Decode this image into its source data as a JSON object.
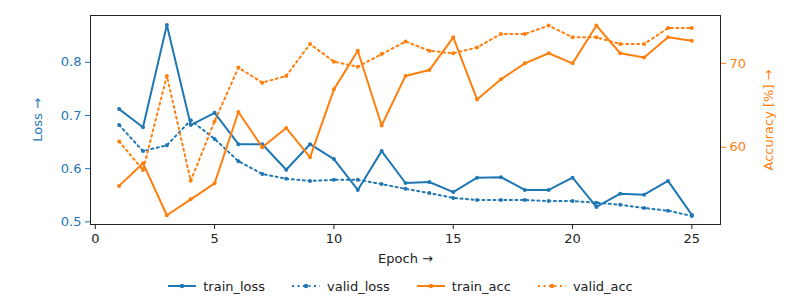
{
  "chart_data": {
    "type": "line",
    "x": [
      1,
      2,
      3,
      4,
      5,
      6,
      7,
      8,
      9,
      10,
      11,
      12,
      13,
      14,
      15,
      16,
      17,
      18,
      19,
      20,
      21,
      22,
      23,
      24,
      25
    ],
    "xlabel": "Epoch",
    "ylabel": "Loss",
    "y2label": "Accuracy [%]",
    "xlim": [
      -0.2,
      26.2
    ],
    "xticks": [
      0,
      5,
      10,
      15,
      20,
      25
    ],
    "ylim": [
      0.495,
      0.888
    ],
    "yticks": [
      0.5,
      0.6,
      0.7,
      0.8
    ],
    "y2lim": [
      50.8,
      75.7
    ],
    "y2ticks": [
      60,
      70
    ],
    "grid": false,
    "legend": "bottom",
    "series": [
      {
        "name": "train_loss",
        "color": "#1f77b4",
        "line_style": "solid",
        "marker": "o",
        "values": [
          0.712,
          0.678,
          0.87,
          0.682,
          0.705,
          0.646,
          0.646,
          0.598,
          0.646,
          0.618,
          0.56,
          0.633,
          0.573,
          0.575,
          0.556,
          0.583,
          0.584,
          0.56,
          0.56,
          0.583,
          0.528,
          0.553,
          0.551,
          0.577,
          0.513
        ]
      },
      {
        "name": "valid_loss",
        "color": "#1f77b4",
        "line_style": "dotted",
        "marker": "o",
        "values": [
          0.682,
          0.633,
          0.644,
          0.691,
          0.656,
          0.614,
          0.59,
          0.581,
          0.577,
          0.579,
          0.579,
          0.571,
          0.562,
          0.554,
          0.545,
          0.541,
          0.541,
          0.541,
          0.539,
          0.539,
          0.536,
          0.532,
          0.526,
          0.521,
          0.511
        ]
      },
      {
        "name": "train_acc",
        "color": "#ff7f0e",
        "line_style": "solid",
        "marker": "o",
        "axis": "y2",
        "values": [
          55.4,
          58.1,
          51.9,
          53.8,
          55.7,
          64.2,
          60.0,
          62.3,
          58.8,
          66.9,
          71.5,
          62.6,
          68.5,
          69.2,
          73.1,
          65.7,
          68.1,
          70.0,
          71.2,
          70.0,
          74.5,
          71.2,
          70.7,
          73.1,
          72.7
        ]
      },
      {
        "name": "valid_acc",
        "color": "#ff7f0e",
        "line_style": "dotted",
        "marker": "o",
        "axis": "y2",
        "values": [
          60.7,
          57.3,
          68.5,
          56.0,
          63.1,
          69.5,
          67.7,
          68.5,
          72.3,
          70.2,
          69.6,
          71.1,
          72.6,
          71.5,
          71.2,
          71.9,
          73.5,
          73.5,
          74.5,
          73.1,
          73.1,
          72.3,
          72.3,
          74.2,
          74.2
        ]
      }
    ]
  }
}
